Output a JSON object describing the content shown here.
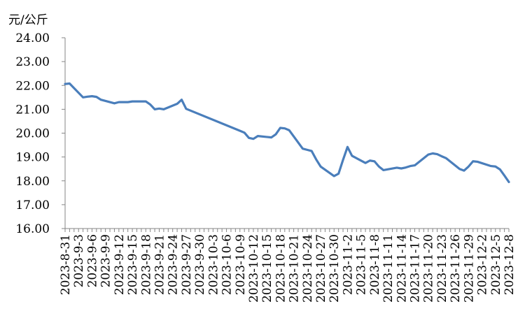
{
  "chart_data": {
    "type": "line",
    "unit_label": "元/公斤",
    "title": "",
    "xlabel": "",
    "ylabel": "元/公斤",
    "ylim": [
      16,
      24
    ],
    "y_ticks": [
      "24.00",
      "23.00",
      "22.00",
      "21.00",
      "20.00",
      "19.00",
      "18.00",
      "17.00",
      "16.00"
    ],
    "x_tick_labels": [
      "2023-8-31",
      "2023-9-3",
      "2023-9-6",
      "2023-9-9",
      "2023-9-12",
      "2023-9-15",
      "2023-9-18",
      "2023-9-21",
      "2023-9-24",
      "2023-9-27",
      "2023-9-30",
      "2023-10-3",
      "2023-10-6",
      "2023-10-9",
      "2023-10-12",
      "2023-10-15",
      "2023-10-18",
      "2023-10-21",
      "2023-10-24",
      "2023-10-27",
      "2023-10-30",
      "2023-11-2",
      "2023-11-5",
      "2023-11-8",
      "2023-11-11",
      "2023-11-14",
      "2023-11-17",
      "2023-11-20",
      "2023-11-23",
      "2023-11-26",
      "2023-11-29",
      "2023-12-2",
      "2023-12-5",
      "2023-12-8"
    ],
    "grid": false,
    "legend": "none",
    "line_color": "#4a7ebb",
    "series": [
      {
        "x": [
          "2023-8-31",
          "2023-9-1",
          "2023-9-4",
          "2023-9-5",
          "2023-9-6",
          "2023-9-7",
          "2023-9-8",
          "2023-9-11",
          "2023-9-12",
          "2023-9-13",
          "2023-9-14",
          "2023-9-15",
          "2023-9-18",
          "2023-9-19",
          "2023-9-20",
          "2023-9-21",
          "2023-9-22",
          "2023-9-25",
          "2023-9-26",
          "2023-9-27",
          "2023-10-9",
          "2023-10-10",
          "2023-10-11",
          "2023-10-12",
          "2023-10-13",
          "2023-10-16",
          "2023-10-17",
          "2023-10-18",
          "2023-10-19",
          "2023-10-20",
          "2023-10-23",
          "2023-10-24",
          "2023-10-25",
          "2023-10-26",
          "2023-10-27",
          "2023-10-30",
          "2023-10-31",
          "2023-11-1",
          "2023-11-2",
          "2023-11-3",
          "2023-11-6",
          "2023-11-7",
          "2023-11-8",
          "2023-11-9",
          "2023-11-10",
          "2023-11-13",
          "2023-11-14",
          "2023-11-15",
          "2023-11-16",
          "2023-11-17",
          "2023-11-20",
          "2023-11-21",
          "2023-11-22",
          "2023-11-23",
          "2023-11-24",
          "2023-11-27",
          "2023-11-28",
          "2023-11-29",
          "2023-11-30",
          "2023-12-1",
          "2023-12-4",
          "2023-12-5",
          "2023-12-6",
          "2023-12-7",
          "2023-12-8"
        ],
        "values": [
          22.06,
          22.08,
          21.5,
          21.53,
          21.55,
          21.52,
          21.4,
          21.25,
          21.3,
          21.3,
          21.3,
          21.33,
          21.33,
          21.2,
          21.0,
          21.03,
          21.0,
          21.23,
          21.4,
          21.02,
          20.1,
          20.02,
          19.8,
          19.76,
          19.88,
          19.82,
          19.95,
          20.22,
          20.2,
          20.12,
          19.35,
          19.3,
          19.25,
          18.9,
          18.6,
          18.2,
          18.3,
          18.88,
          19.42,
          19.05,
          18.75,
          18.85,
          18.82,
          18.6,
          18.45,
          18.55,
          18.52,
          18.56,
          18.62,
          18.65,
          19.1,
          19.15,
          19.12,
          19.03,
          18.95,
          18.5,
          18.43,
          18.6,
          18.82,
          18.8,
          18.62,
          18.6,
          18.48,
          18.22,
          17.95
        ]
      }
    ]
  }
}
